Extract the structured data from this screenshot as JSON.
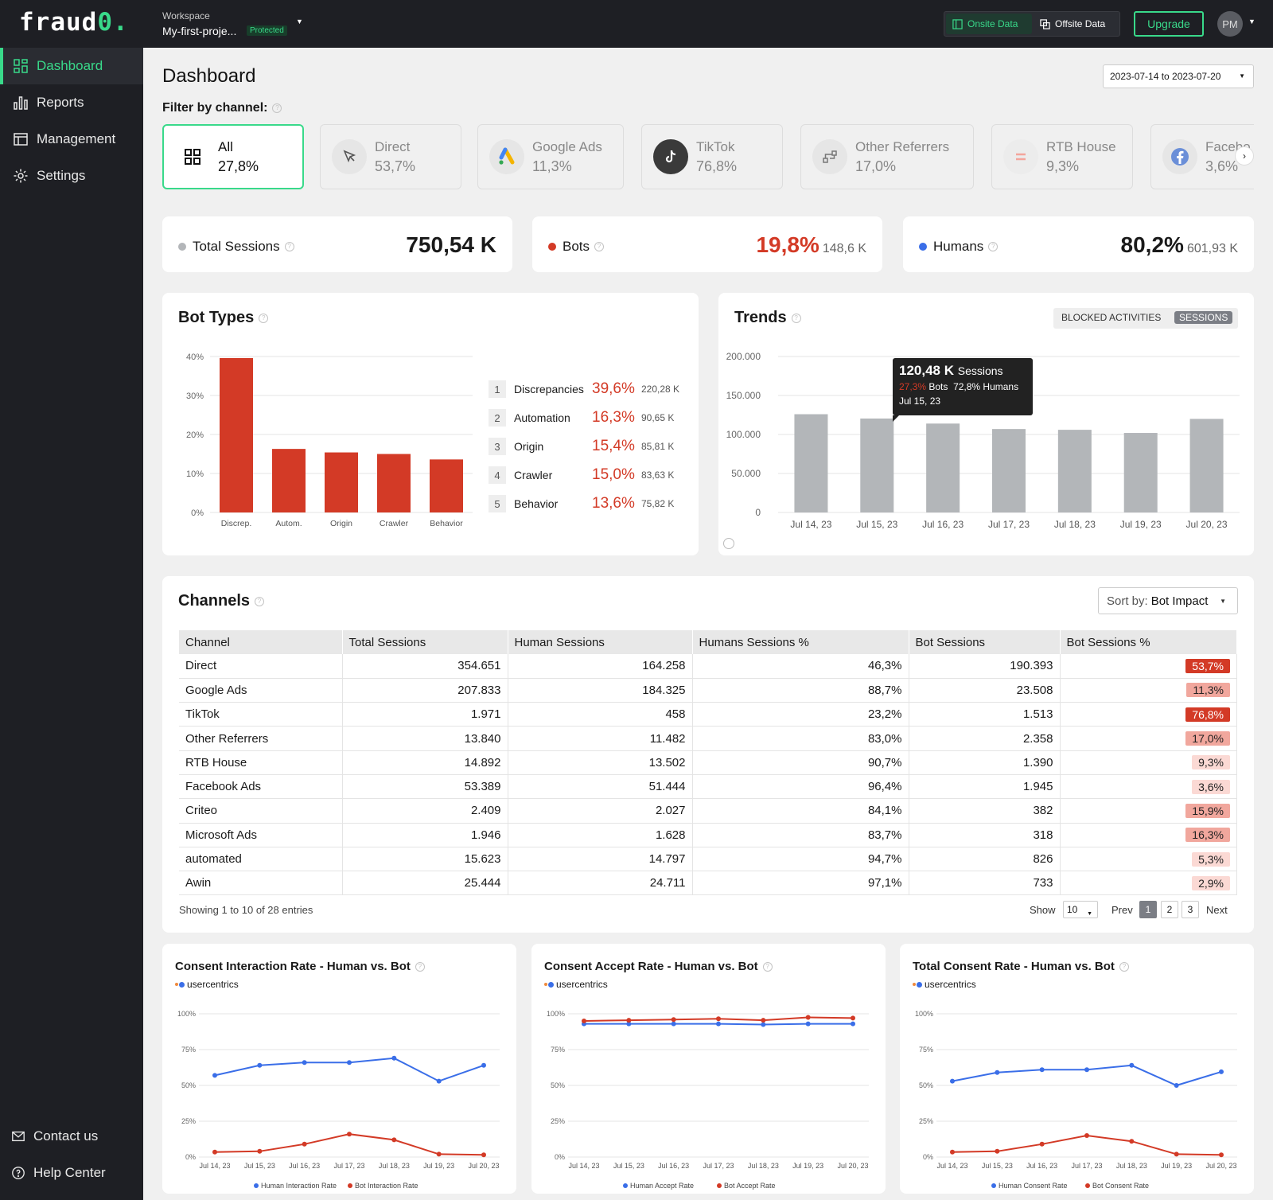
{
  "app": {
    "logo_text": "fraud",
    "logo_accent": "0.",
    "accent": "#39d98a"
  },
  "sidebar": {
    "items": [
      {
        "label": "Dashboard",
        "icon": "grid-icon"
      },
      {
        "label": "Reports",
        "icon": "bar-chart-icon"
      },
      {
        "label": "Management",
        "icon": "layout-icon"
      },
      {
        "label": "Settings",
        "icon": "gear-icon"
      }
    ],
    "bottom": [
      {
        "label": "Contact us",
        "icon": "mail-icon"
      },
      {
        "label": "Help Center",
        "icon": "help-circle-icon"
      }
    ]
  },
  "topbar": {
    "workspace_label": "Workspace",
    "workspace_name": "My-first-proje...",
    "badge": "Protected",
    "onsite": "Onsite Data",
    "offsite": "Offsite Data",
    "upgrade": "Upgrade",
    "avatar": "PM"
  },
  "page": {
    "title": "Dashboard",
    "date_range": "2023-07-14 to 2023-07-20",
    "filter_label": "Filter by channel:"
  },
  "channels": [
    {
      "name": "All",
      "pct": "27,8%"
    },
    {
      "name": "Direct",
      "pct": "53,7%"
    },
    {
      "name": "Google Ads",
      "pct": "11,3%"
    },
    {
      "name": "TikTok",
      "pct": "76,8%"
    },
    {
      "name": "Other Referrers",
      "pct": "17,0%"
    },
    {
      "name": "RTB House",
      "pct": "9,3%"
    },
    {
      "name": "Facebo",
      "pct": "3,6%"
    }
  ],
  "stats": {
    "total": {
      "label": "Total Sessions",
      "value": "750,54 K"
    },
    "bots": {
      "label": "Bots",
      "value": "19,8%",
      "sub": "148,6 K"
    },
    "humans": {
      "label": "Humans",
      "value": "80,2%",
      "sub": "601,93 K"
    }
  },
  "bot_types": {
    "title": "Bot Types",
    "list": [
      {
        "n": "1",
        "name": "Discrepancies",
        "pct": "39,6%",
        "abs": "220,28 K"
      },
      {
        "n": "2",
        "name": "Automation",
        "pct": "16,3%",
        "abs": "90,65 K"
      },
      {
        "n": "3",
        "name": "Origin",
        "pct": "15,4%",
        "abs": "85,81 K"
      },
      {
        "n": "4",
        "name": "Crawler",
        "pct": "15,0%",
        "abs": "83,63 K"
      },
      {
        "n": "5",
        "name": "Behavior",
        "pct": "13,6%",
        "abs": "75,82 K"
      }
    ]
  },
  "trends": {
    "title": "Trends",
    "toggle": [
      "BLOCKED ACTIVITIES",
      "SESSIONS"
    ],
    "tooltip": {
      "value": "120,48 K",
      "unit": "Sessions",
      "bots_pct": "27,3%",
      "bots_label": "Bots",
      "humans": "72,8% Humans",
      "date": "Jul 15, 23"
    }
  },
  "channels_table": {
    "title": "Channels",
    "sort_label": "Sort by:",
    "sort_value": "Bot Impact",
    "headers": [
      "Channel",
      "Total Sessions",
      "Human Sessions",
      "Humans Sessions %",
      "Bot Sessions",
      "Bot Sessions %"
    ],
    "rows": [
      [
        "Direct",
        "354.651",
        "164.258",
        "46,3%",
        "190.393",
        "53,7%"
      ],
      [
        "Google Ads",
        "207.833",
        "184.325",
        "88,7%",
        "23.508",
        "11,3%"
      ],
      [
        "TikTok",
        "1.971",
        "458",
        "23,2%",
        "1.513",
        "76,8%"
      ],
      [
        "Other Referrers",
        "13.840",
        "11.482",
        "83,0%",
        "2.358",
        "17,0%"
      ],
      [
        "RTB House",
        "14.892",
        "13.502",
        "90,7%",
        "1.390",
        "9,3%"
      ],
      [
        "Facebook Ads",
        "53.389",
        "51.444",
        "96,4%",
        "1.945",
        "3,6%"
      ],
      [
        "Criteo",
        "2.409",
        "2.027",
        "84,1%",
        "382",
        "15,9%"
      ],
      [
        "Microsoft Ads",
        "1.946",
        "1.628",
        "83,7%",
        "318",
        "16,3%"
      ],
      [
        "automated",
        "15.623",
        "14.797",
        "94,7%",
        "826",
        "5,3%"
      ],
      [
        "Awin",
        "25.444",
        "24.711",
        "97,1%",
        "733",
        "2,9%"
      ]
    ],
    "footer": "Showing 1 to 10 of 28 entries",
    "show": "Show",
    "page_size": "10",
    "prev": "Prev",
    "next": "Next",
    "pages": [
      "1",
      "2",
      "3"
    ]
  },
  "chart_data": [
    {
      "type": "bar",
      "title": "Bot Types",
      "categories": [
        "Discrep.",
        "Autom.",
        "Origin",
        "Crawler",
        "Behavior"
      ],
      "values": [
        39.6,
        16.3,
        15.4,
        15.0,
        13.6
      ],
      "ylim": [
        0,
        40
      ],
      "yticks": [
        "0%",
        "10%",
        "20%",
        "30%",
        "40%"
      ],
      "color": "#d33a26"
    },
    {
      "type": "bar",
      "title": "Trends",
      "categories": [
        "Jul 14, 23",
        "Jul 15, 23",
        "Jul 16, 23",
        "Jul 17, 23",
        "Jul 18, 23",
        "Jul 19, 23",
        "Jul 20, 23"
      ],
      "values": [
        126000,
        120480,
        114000,
        107000,
        106000,
        102000,
        120000
      ],
      "ylim": [
        0,
        200000
      ],
      "yticks": [
        "0",
        "50.000",
        "100.000",
        "150.000",
        "200.000"
      ],
      "color": "#b3b6b9"
    },
    {
      "type": "line",
      "title": "Consent Interaction Rate - Human vs. Bot",
      "brand": "usercentrics",
      "categories": [
        "Jul 14, 23",
        "Jul 15, 23",
        "Jul 16, 23",
        "Jul 17, 23",
        "Jul 18, 23",
        "Jul 19, 23",
        "Jul 20, 23"
      ],
      "yticks": [
        "0%",
        "25%",
        "50%",
        "75%",
        "100%"
      ],
      "ylim": [
        0,
        100
      ],
      "series": [
        {
          "name": "Human Interaction Rate",
          "color": "#3a6ee8",
          "values": [
            57,
            64,
            66,
            66,
            69,
            53,
            64
          ]
        },
        {
          "name": "Bot Interaction Rate",
          "color": "#d33a26",
          "values": [
            3.5,
            4,
            9,
            16,
            12,
            2,
            1.5
          ]
        }
      ]
    },
    {
      "type": "line",
      "title": "Consent Accept Rate - Human vs. Bot",
      "brand": "usercentrics",
      "categories": [
        "Jul 14, 23",
        "Jul 15, 23",
        "Jul 16, 23",
        "Jul 17, 23",
        "Jul 18, 23",
        "Jul 19, 23",
        "Jul 20, 23"
      ],
      "yticks": [
        "0%",
        "25%",
        "50%",
        "75%",
        "100%"
      ],
      "ylim": [
        0,
        100
      ],
      "series": [
        {
          "name": "Human Accept Rate",
          "color": "#3a6ee8",
          "values": [
            93,
            93,
            93,
            93,
            92.5,
            93,
            93
          ]
        },
        {
          "name": "Bot Accept Rate",
          "color": "#d33a26",
          "values": [
            95,
            95.5,
            96,
            96.5,
            95.5,
            97.5,
            97
          ]
        }
      ]
    },
    {
      "type": "line",
      "title": "Total Consent Rate - Human vs. Bot",
      "brand": "usercentrics",
      "categories": [
        "Jul 14, 23",
        "Jul 15, 23",
        "Jul 16, 23",
        "Jul 17, 23",
        "Jul 18, 23",
        "Jul 19, 23",
        "Jul 20, 23"
      ],
      "yticks": [
        "0%",
        "25%",
        "50%",
        "75%",
        "100%"
      ],
      "ylim": [
        0,
        100
      ],
      "series": [
        {
          "name": "Human Consent Rate",
          "color": "#3a6ee8",
          "values": [
            53,
            59,
            61,
            61,
            64,
            50,
            59.5
          ]
        },
        {
          "name": "Bot Consent Rate",
          "color": "#d33a26",
          "values": [
            3.5,
            4,
            9,
            15,
            11,
            2,
            1.5
          ]
        }
      ]
    }
  ]
}
